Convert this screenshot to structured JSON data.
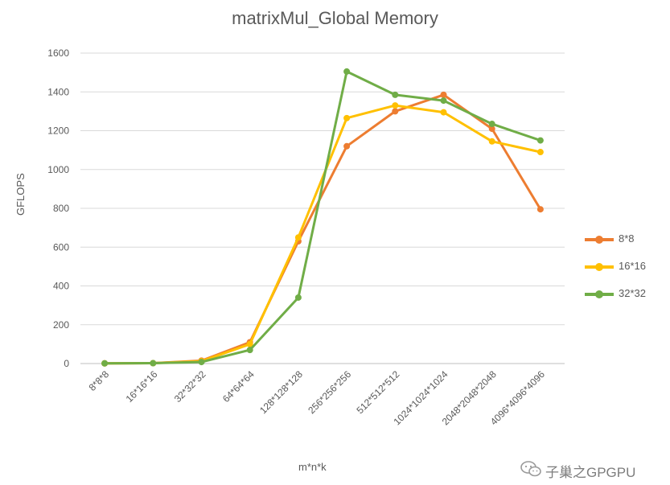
{
  "chart_data": {
    "type": "line",
    "title": "matrixMul_Global Memory",
    "xlabel": "m*n*k",
    "ylabel": "GFLOPS",
    "categories": [
      "8*8*8",
      "16*16*16",
      "32*32*32",
      "64*64*64",
      "128*128*128",
      "256*256*256",
      "512*512*512",
      "1024*1024*1024",
      "2048*2048*2048",
      "4096*4096*4096"
    ],
    "ylim": [
      0,
      1600
    ],
    "yticks": [
      0,
      200,
      400,
      600,
      800,
      1000,
      1200,
      1400,
      1600
    ],
    "grid": true,
    "legend_position": "right",
    "series": [
      {
        "name": "8*8",
        "color": "#ED7D31",
        "values": [
          1,
          2,
          15,
          110,
          630,
          1120,
          1300,
          1385,
          1210,
          795
        ]
      },
      {
        "name": "16*16",
        "color": "#FFC000",
        "values": [
          1,
          2,
          12,
          100,
          650,
          1265,
          1330,
          1295,
          1145,
          1090
        ]
      },
      {
        "name": "32*32",
        "color": "#70AD47",
        "values": [
          1,
          2,
          8,
          70,
          340,
          1505,
          1385,
          1355,
          1235,
          1150
        ]
      }
    ]
  },
  "watermark": {
    "text": "子巢之GPGPU",
    "icon": "wechat-icon"
  }
}
